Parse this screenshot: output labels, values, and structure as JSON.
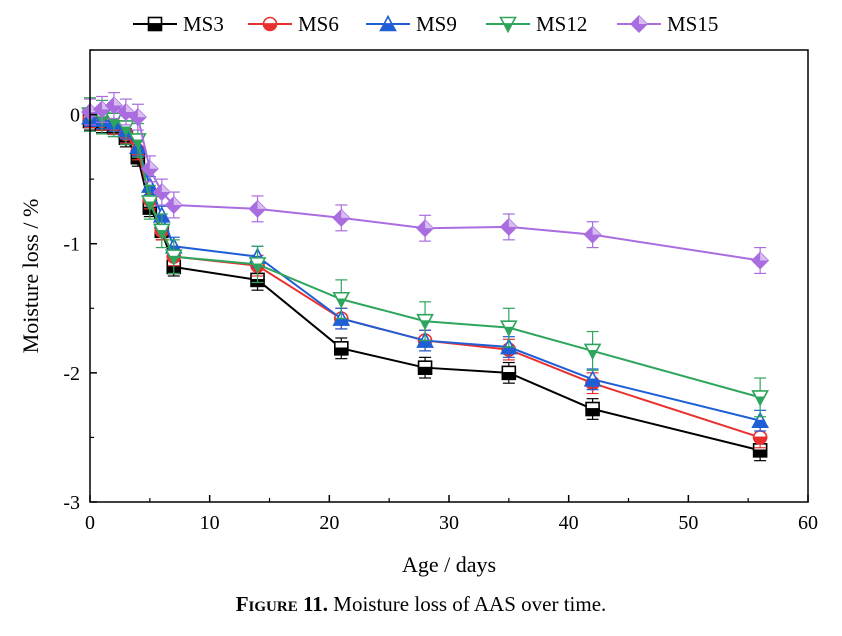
{
  "chart_data": {
    "type": "line",
    "xlabel": "Age / days",
    "ylabel": "Moisture loss / %",
    "xlim": [
      0,
      60
    ],
    "ylim": [
      -3,
      0.5
    ],
    "xticks": [
      "0",
      "10",
      "20",
      "30",
      "40",
      "50",
      "60"
    ],
    "yticks": [
      "0",
      "-1",
      "-2",
      "-3"
    ],
    "x": [
      0,
      1,
      2,
      3,
      4,
      5,
      6,
      7,
      14,
      21,
      28,
      35,
      42,
      56
    ],
    "series": [
      {
        "name": "MS3",
        "color": "#000000",
        "marker": "square",
        "values": [
          -0.05,
          -0.07,
          -0.1,
          -0.18,
          -0.33,
          -0.72,
          -0.9,
          -1.18,
          -1.28,
          -1.81,
          -1.96,
          -2.0,
          -2.28,
          -2.6
        ],
        "error": [
          0.07,
          0.07,
          0.07,
          0.07,
          0.07,
          0.07,
          0.07,
          0.07,
          0.08,
          0.08,
          0.08,
          0.08,
          0.08,
          0.08
        ]
      },
      {
        "name": "MS6",
        "color": "#e8312f",
        "marker": "circle",
        "values": [
          -0.03,
          -0.05,
          -0.08,
          -0.15,
          -0.28,
          -0.66,
          -0.9,
          -1.1,
          -1.17,
          -1.58,
          -1.75,
          -1.82,
          -2.08,
          -2.5
        ],
        "error": [
          0.07,
          0.07,
          0.07,
          0.07,
          0.07,
          0.07,
          0.07,
          0.07,
          0.08,
          0.08,
          0.08,
          0.08,
          0.08,
          0.08
        ]
      },
      {
        "name": "MS9",
        "color": "#1f5fd6",
        "marker": "triangle-up",
        "values": [
          -0.02,
          -0.04,
          -0.06,
          -0.12,
          -0.25,
          -0.55,
          -0.78,
          -1.02,
          -1.1,
          -1.58,
          -1.75,
          -1.8,
          -2.05,
          -2.37
        ],
        "error": [
          0.07,
          0.07,
          0.07,
          0.07,
          0.07,
          0.07,
          0.07,
          0.07,
          0.08,
          0.08,
          0.08,
          0.08,
          0.08,
          0.08
        ]
      },
      {
        "name": "MS12",
        "color": "#2ea55c",
        "marker": "triangle-down",
        "values": [
          0.0,
          -0.02,
          -0.04,
          -0.1,
          -0.2,
          -0.68,
          -0.9,
          -1.1,
          -1.16,
          -1.43,
          -1.6,
          -1.65,
          -1.83,
          -2.19
        ],
        "error": [
          0.13,
          0.13,
          0.13,
          0.13,
          0.13,
          0.13,
          0.13,
          0.13,
          0.14,
          0.15,
          0.15,
          0.15,
          0.15,
          0.15
        ]
      },
      {
        "name": "MS15",
        "color": "#a96de0",
        "marker": "diamond",
        "values": [
          0.02,
          0.04,
          0.07,
          0.02,
          -0.02,
          -0.42,
          -0.6,
          -0.7,
          -0.73,
          -0.8,
          -0.88,
          -0.87,
          -0.93,
          -1.13
        ],
        "error": [
          0.1,
          0.1,
          0.1,
          0.1,
          0.1,
          0.1,
          0.1,
          0.1,
          0.1,
          0.1,
          0.1,
          0.1,
          0.1,
          0.1
        ]
      }
    ],
    "legend": "top",
    "grid": false
  },
  "caption": {
    "label": "Figure 11.",
    "text": " Moisture loss of AAS over time."
  }
}
